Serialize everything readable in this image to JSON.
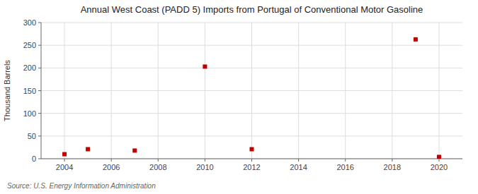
{
  "chart_data": {
    "type": "scatter",
    "title": "Annual West Coast (PADD 5) Imports from Portugal of Conventional Motor Gasoline",
    "ylabel": "Thousand Barrels",
    "source": "Source: U.S. Energy Information Administration",
    "x": [
      2004,
      2005,
      2007,
      2010,
      2012,
      2019,
      2020
    ],
    "values": [
      10,
      21,
      18,
      203,
      21,
      263,
      4
    ],
    "xlim": [
      2003.0,
      2021.0
    ],
    "ylim": [
      0,
      300
    ],
    "xticks": [
      2004,
      2006,
      2008,
      2010,
      2012,
      2014,
      2016,
      2018,
      2020
    ],
    "yticks": [
      0,
      50,
      100,
      150,
      200,
      250,
      300
    ],
    "color": "#c00000",
    "marker": "square",
    "grid": true
  }
}
